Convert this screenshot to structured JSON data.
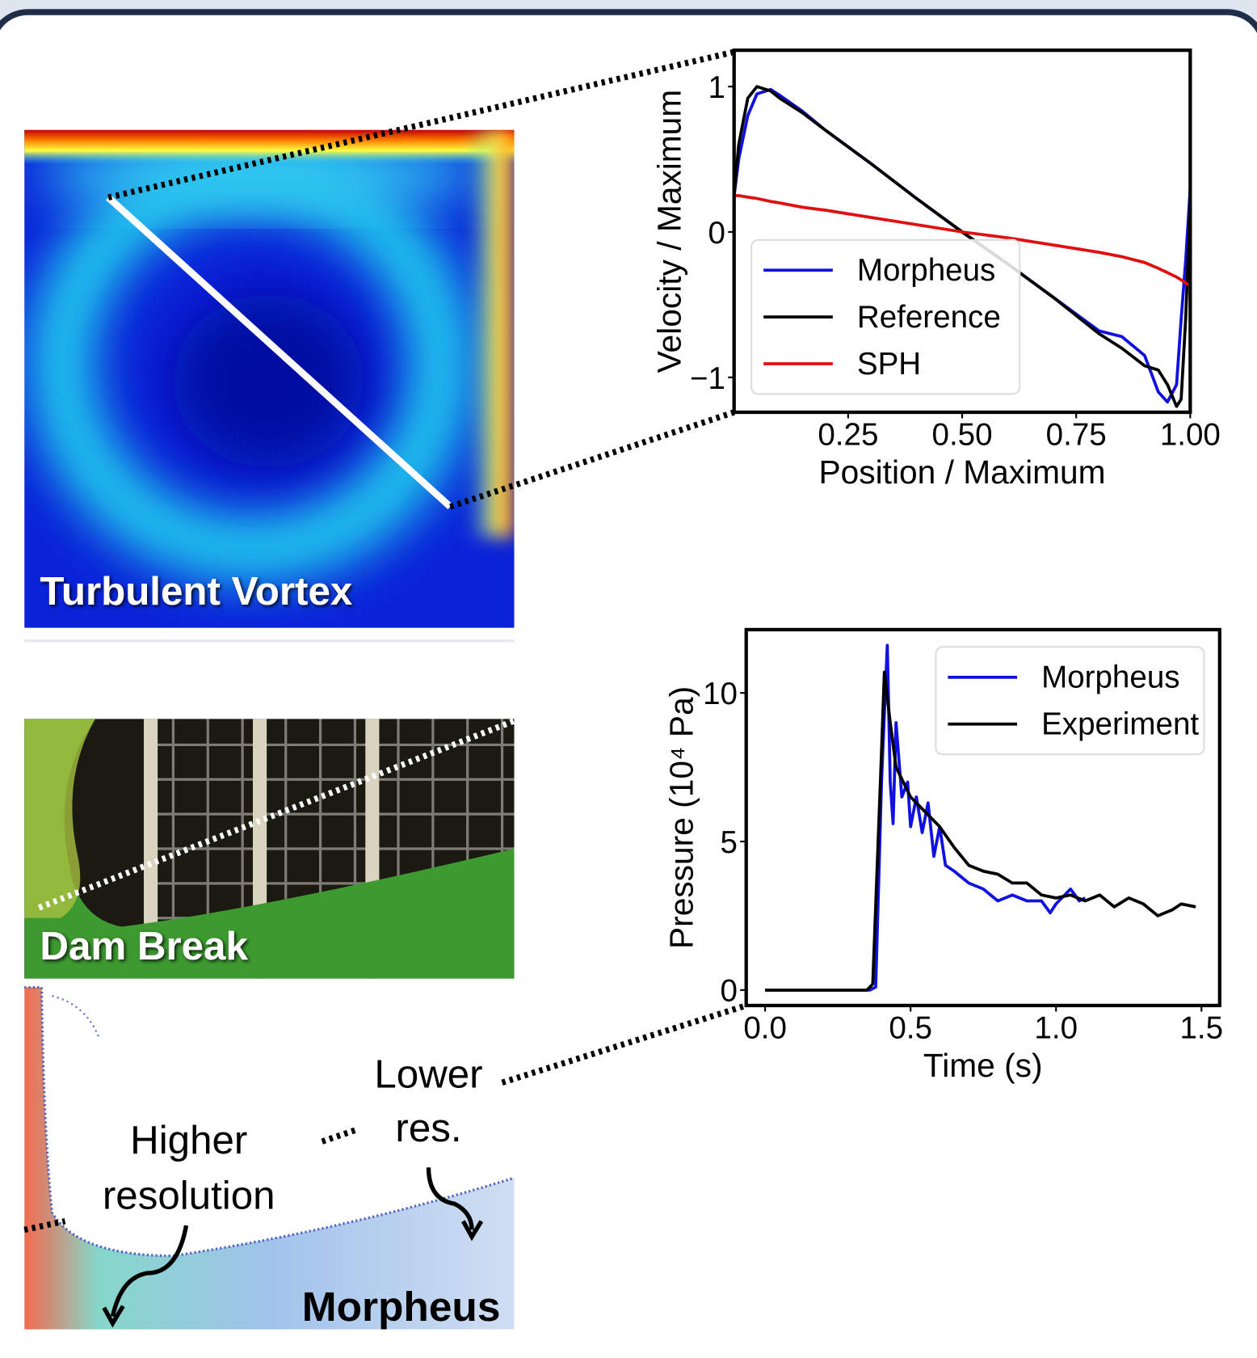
{
  "chart_data": [
    {
      "type": "line",
      "xlabel": "Position / Maximum",
      "ylabel": "Velocity / Maximum",
      "xlim": [
        0,
        1
      ],
      "ylim": [
        -1.24,
        1.25
      ],
      "xticks": [
        0.25,
        {
          "value": 0.5,
          "label": "0.50"
        },
        0.75,
        {
          "value": 1,
          "label": "1.00"
        }
      ],
      "yticks": [
        {
          "value": -1,
          "label": "−1"
        },
        0,
        1
      ],
      "legend": "center left",
      "x": [
        0,
        0.01,
        0.03,
        0.05,
        0.08,
        0.1,
        0.15,
        0.2,
        0.3,
        0.4,
        0.5,
        0.6,
        0.7,
        0.8,
        0.85,
        0.9,
        0.93,
        0.95,
        0.97,
        0.98,
        0.99,
        1.0
      ],
      "series": [
        {
          "name": "Morpheus",
          "color": "#1010e0",
          "values": [
            0.25,
            0.5,
            0.8,
            0.95,
            0.98,
            0.94,
            0.83,
            0.7,
            0.47,
            0.23,
            0.0,
            -0.22,
            -0.45,
            -0.68,
            -0.72,
            -0.85,
            -1.1,
            -1.17,
            -1.05,
            -0.6,
            -0.2,
            0.3
          ]
        },
        {
          "name": "Reference",
          "color": "#000000",
          "values": [
            0.25,
            0.6,
            0.92,
            1.0,
            0.97,
            0.92,
            0.82,
            0.7,
            0.47,
            0.23,
            0.0,
            -0.22,
            -0.45,
            -0.7,
            -0.8,
            -0.92,
            -0.95,
            -1.05,
            -1.2,
            -1.15,
            -0.6,
            0.2
          ]
        },
        {
          "name": "SPH",
          "color": "#e01010",
          "values": [
            0.25,
            0.25,
            0.24,
            0.23,
            0.21,
            0.2,
            0.17,
            0.15,
            0.1,
            0.05,
            0.0,
            -0.04,
            -0.09,
            -0.14,
            -0.17,
            -0.21,
            -0.25,
            -0.28,
            -0.31,
            -0.33,
            -0.35,
            -0.37
          ]
        }
      ]
    },
    {
      "type": "line",
      "xlabel": "Time (s)",
      "ylabel": "Pressure (10⁴ Pa)",
      "xlim": [
        -0.065,
        1.5625
      ],
      "ylim": [
        -0.52,
        12.13
      ],
      "xticks": [
        {
          "value": 0,
          "label": "0.0"
        },
        0.5,
        {
          "value": 1,
          "label": "1.0"
        },
        1.5
      ],
      "yticks": [
        0,
        5,
        10
      ],
      "legend": "upper right",
      "series": [
        {
          "name": "Morpheus",
          "color": "#1010e0",
          "x": [
            0,
            0.36,
            0.38,
            0.4,
            0.42,
            0.43,
            0.44,
            0.45,
            0.47,
            0.49,
            0.5,
            0.52,
            0.54,
            0.56,
            0.58,
            0.6,
            0.62,
            0.65,
            0.7,
            0.75,
            0.8,
            0.85,
            0.9,
            0.95,
            0.98,
            1.0,
            1.05,
            1.08,
            1.1
          ],
          "values": [
            0,
            0,
            0.1,
            7,
            11.6,
            7,
            5.6,
            9,
            6.5,
            7,
            5.5,
            6.5,
            5.3,
            6.3,
            4.5,
            5.5,
            4.2,
            4.0,
            3.6,
            3.4,
            3.0,
            3.2,
            3.0,
            3.0,
            2.6,
            2.9,
            3.4,
            3.0,
            3.1
          ]
        },
        {
          "name": "Experiment",
          "color": "#000000",
          "x": [
            0,
            0.35,
            0.37,
            0.4,
            0.41,
            0.43,
            0.45,
            0.5,
            0.55,
            0.6,
            0.65,
            0.7,
            0.75,
            0.8,
            0.85,
            0.9,
            0.95,
            1.0,
            1.05,
            1.1,
            1.15,
            1.2,
            1.25,
            1.3,
            1.35,
            1.4,
            1.43,
            1.48
          ],
          "values": [
            0,
            0,
            0.2,
            8,
            10.7,
            9,
            7.5,
            6.5,
            6,
            5.5,
            4.8,
            4.2,
            4.0,
            3.9,
            3.6,
            3.6,
            3.2,
            3.1,
            3.2,
            3.0,
            3.2,
            2.8,
            3.1,
            2.9,
            2.5,
            2.7,
            2.9,
            2.8
          ]
        }
      ]
    }
  ],
  "panels": {
    "vortex": "Turbulent Vortex",
    "dam": "Dam Break",
    "sim": "Morpheus"
  },
  "annotations": {
    "higher": [
      "Higher",
      "resolution"
    ],
    "lower": [
      "Lower",
      "res."
    ]
  }
}
